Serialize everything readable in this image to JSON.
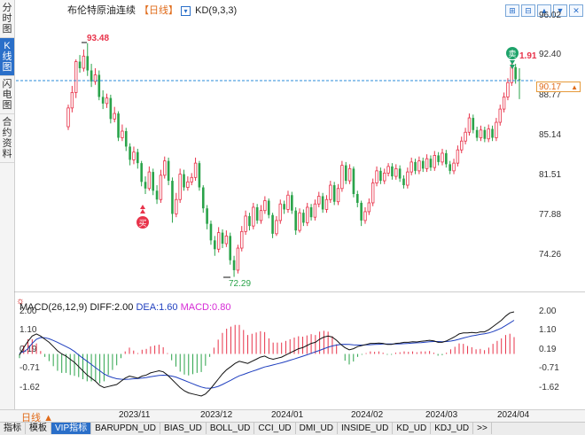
{
  "sidebar": {
    "items": [
      "分时图",
      "K线图",
      "闪电图",
      "合约资料"
    ],
    "active_index": 1
  },
  "header": {
    "title": "布伦特原油连续",
    "period": "【日线】",
    "indicator": "KD(9,3,3)"
  },
  "toolbar": {
    "buttons": [
      "⊞",
      "⊟",
      "▲",
      "▼",
      "✕"
    ]
  },
  "price_axis": {
    "labels": [
      "96.02",
      "92.40",
      "88.77",
      "85.14",
      "81.51",
      "77.88",
      "74.26"
    ]
  },
  "current_price": "90.17",
  "annotations": {
    "high": "93.48",
    "low": "72.29",
    "right_high": "1.91",
    "sell": "卖",
    "buy": "买"
  },
  "macd": {
    "name": "MACD(26,12,9)",
    "diff": "DIFF:2.00",
    "dea": "DEA:1.60",
    "macd_val": "MACD:0.80",
    "axis_labels": [
      "2.00",
      "1.10",
      "0.19",
      "-0.71",
      "-1.62"
    ]
  },
  "dates": [
    "2023/11",
    "2023/12",
    "2024/01",
    "2024/02",
    "2024/03",
    "2024/04"
  ],
  "period_selector": "日线",
  "tabs": [
    "指标",
    "模板",
    "VIP指标",
    "BARUPDN_UD",
    "BIAS_UD",
    "BOLL_UD",
    "CCI_UD",
    "DMI_UD",
    "INSIDE_UD",
    "KD_UD",
    "KDJ_UD",
    ">>"
  ],
  "active_tab": 2,
  "colors": {
    "up": "#e8334a",
    "down": "#2aa34a",
    "diff": "#111111",
    "dea": "#1f3fbf",
    "macd_label": "#d62ad6",
    "orange": "#e06b1a"
  },
  "chart_data": {
    "type": "candlestick",
    "title": "布伦特原油连续 日线",
    "y_range": [
      72.0,
      96.5
    ],
    "y_ticks": [
      96.02,
      92.4,
      88.77,
      85.14,
      81.51,
      77.88,
      74.26
    ],
    "candles": [
      [
        85.9,
        87.6,
        85.6,
        87.9
      ],
      [
        87.6,
        89.0,
        87.2,
        89.6
      ],
      [
        89.0,
        91.8,
        88.5,
        92.0
      ],
      [
        91.8,
        91.2,
        90.8,
        92.4
      ],
      [
        91.2,
        92.3,
        90.9,
        92.9
      ],
      [
        92.3,
        91.0,
        90.5,
        93.48
      ],
      [
        91.0,
        90.0,
        89.5,
        91.6
      ],
      [
        90.0,
        90.6,
        89.7,
        91.2
      ],
      [
        90.6,
        88.6,
        88.3,
        91.0
      ],
      [
        88.6,
        88.0,
        87.5,
        89.2
      ],
      [
        88.0,
        88.5,
        87.6,
        88.9
      ],
      [
        88.5,
        86.6,
        86.2,
        88.8
      ],
      [
        86.6,
        87.1,
        86.3,
        87.7
      ],
      [
        87.1,
        84.9,
        84.6,
        87.3
      ],
      [
        84.9,
        85.5,
        84.6,
        86.1
      ],
      [
        85.5,
        84.1,
        83.7,
        85.8
      ],
      [
        84.1,
        82.9,
        82.4,
        84.4
      ],
      [
        82.9,
        83.6,
        82.5,
        84.1
      ],
      [
        83.6,
        82.6,
        82.1,
        83.9
      ],
      [
        82.6,
        80.9,
        80.5,
        82.8
      ],
      [
        80.9,
        80.3,
        79.8,
        81.4
      ],
      [
        80.3,
        81.8,
        80.1,
        82.3
      ],
      [
        81.8,
        80.1,
        79.7,
        82.1
      ],
      [
        80.1,
        79.3,
        78.9,
        80.6
      ],
      [
        79.3,
        81.5,
        79.0,
        82.0
      ],
      [
        81.5,
        82.8,
        81.2,
        83.2
      ],
      [
        82.8,
        81.0,
        80.6,
        83.1
      ],
      [
        81.0,
        78.0,
        77.2,
        81.3
      ],
      [
        78.0,
        79.3,
        77.7,
        79.9
      ],
      [
        79.3,
        81.6,
        79.0,
        82.1
      ],
      [
        81.6,
        80.4,
        80.1,
        82.0
      ],
      [
        80.4,
        80.9,
        80.1,
        81.4
      ],
      [
        80.9,
        81.3,
        80.6,
        81.7
      ],
      [
        81.3,
        82.6,
        81.0,
        83.1
      ],
      [
        82.6,
        80.4,
        80.1,
        82.8
      ],
      [
        80.4,
        78.5,
        78.1,
        80.6
      ],
      [
        78.5,
        77.1,
        76.6,
        78.8
      ],
      [
        77.1,
        75.6,
        75.2,
        77.4
      ],
      [
        75.6,
        74.8,
        74.2,
        76.0
      ],
      [
        74.8,
        76.3,
        74.5,
        76.8
      ],
      [
        76.3,
        75.3,
        74.9,
        76.6
      ],
      [
        75.3,
        76.0,
        75.0,
        76.5
      ],
      [
        76.0,
        73.8,
        73.4,
        76.3
      ],
      [
        73.8,
        72.9,
        72.29,
        74.2
      ],
      [
        72.9,
        74.9,
        72.6,
        75.2
      ],
      [
        74.9,
        76.4,
        74.6,
        76.9
      ],
      [
        76.4,
        77.8,
        76.1,
        78.3
      ],
      [
        77.8,
        76.9,
        76.5,
        78.1
      ],
      [
        76.9,
        78.6,
        76.6,
        79.0
      ],
      [
        78.6,
        77.4,
        77.1,
        78.9
      ],
      [
        77.4,
        78.3,
        77.1,
        78.8
      ],
      [
        78.3,
        79.2,
        78.0,
        79.6
      ],
      [
        79.2,
        77.9,
        77.6,
        79.4
      ],
      [
        77.9,
        76.2,
        75.8,
        78.1
      ],
      [
        76.2,
        77.4,
        76.0,
        77.8
      ],
      [
        77.4,
        78.9,
        77.1,
        79.3
      ],
      [
        78.9,
        78.4,
        78.0,
        79.2
      ],
      [
        78.4,
        79.7,
        78.1,
        80.1
      ],
      [
        79.7,
        78.3,
        78.0,
        80.0
      ],
      [
        78.3,
        76.5,
        76.1,
        78.6
      ],
      [
        76.5,
        78.1,
        76.3,
        78.5
      ],
      [
        78.1,
        77.2,
        76.9,
        78.4
      ],
      [
        77.2,
        78.6,
        76.9,
        79.0
      ],
      [
        78.6,
        77.7,
        77.4,
        78.9
      ],
      [
        77.7,
        78.9,
        77.4,
        79.3
      ],
      [
        78.9,
        79.6,
        78.6,
        80.0
      ],
      [
        79.6,
        78.4,
        78.1,
        79.9
      ],
      [
        78.4,
        79.3,
        78.1,
        79.7
      ],
      [
        79.3,
        80.6,
        79.0,
        81.0
      ],
      [
        80.6,
        79.1,
        78.8,
        80.9
      ],
      [
        79.1,
        80.3,
        78.8,
        80.7
      ],
      [
        80.3,
        82.4,
        80.0,
        82.8
      ],
      [
        82.4,
        81.0,
        80.7,
        82.7
      ],
      [
        81.0,
        82.1,
        80.7,
        82.5
      ],
      [
        82.1,
        79.8,
        79.5,
        82.3
      ],
      [
        79.8,
        79.0,
        78.6,
        80.1
      ],
      [
        79.0,
        77.4,
        76.9,
        79.2
      ],
      [
        77.4,
        78.2,
        77.1,
        78.6
      ],
      [
        78.2,
        79.0,
        77.9,
        79.4
      ],
      [
        79.0,
        80.8,
        78.7,
        81.2
      ],
      [
        80.8,
        81.9,
        80.5,
        82.3
      ],
      [
        81.9,
        81.0,
        80.7,
        82.2
      ],
      [
        81.0,
        81.7,
        80.7,
        82.1
      ],
      [
        81.7,
        82.3,
        81.4,
        82.6
      ],
      [
        82.3,
        81.4,
        81.1,
        82.6
      ],
      [
        81.4,
        82.1,
        81.1,
        82.5
      ],
      [
        82.1,
        81.2,
        80.9,
        82.4
      ],
      [
        81.2,
        80.6,
        80.3,
        81.5
      ],
      [
        80.6,
        81.8,
        80.3,
        82.2
      ],
      [
        81.8,
        82.7,
        81.5,
        83.1
      ],
      [
        82.7,
        81.9,
        81.6,
        83.0
      ],
      [
        81.9,
        82.8,
        81.6,
        83.2
      ],
      [
        82.8,
        82.1,
        81.8,
        83.1
      ],
      [
        82.1,
        83.0,
        81.8,
        83.4
      ],
      [
        83.0,
        82.2,
        81.9,
        83.3
      ],
      [
        82.2,
        83.3,
        81.9,
        83.7
      ],
      [
        83.3,
        82.7,
        82.4,
        83.6
      ],
      [
        82.7,
        83.5,
        82.4,
        83.9
      ],
      [
        83.5,
        82.5,
        82.2,
        83.8
      ],
      [
        82.5,
        81.9,
        81.6,
        82.8
      ],
      [
        81.9,
        82.6,
        81.6,
        83.0
      ],
      [
        82.6,
        83.8,
        82.3,
        84.2
      ],
      [
        83.8,
        84.6,
        83.5,
        85.0
      ],
      [
        84.6,
        85.4,
        84.3,
        85.8
      ],
      [
        85.4,
        86.7,
        85.1,
        87.1
      ],
      [
        86.7,
        85.6,
        85.3,
        87.0
      ],
      [
        85.6,
        84.9,
        84.6,
        85.9
      ],
      [
        84.9,
        85.6,
        84.6,
        86.0
      ],
      [
        85.6,
        84.8,
        84.5,
        85.9
      ],
      [
        84.8,
        85.7,
        84.5,
        86.1
      ],
      [
        85.7,
        84.9,
        84.6,
        86.0
      ],
      [
        84.9,
        86.3,
        84.6,
        86.7
      ],
      [
        86.3,
        87.5,
        86.0,
        87.9
      ],
      [
        87.5,
        88.6,
        87.2,
        89.0
      ],
      [
        88.6,
        89.9,
        88.3,
        90.3
      ],
      [
        89.9,
        91.3,
        89.6,
        91.91
      ],
      [
        91.3,
        90.2,
        89.8,
        91.6
      ],
      [
        90.2,
        90.17,
        88.4,
        91.2
      ]
    ],
    "macd_range": [
      -2.1,
      2.4
    ],
    "macd_ticks": [
      2.0,
      1.1,
      0.19,
      -0.71,
      -1.62
    ],
    "diff": [
      -0.05,
      0.3,
      0.6,
      0.85,
      0.95,
      0.85,
      0.7,
      0.55,
      0.35,
      0.15,
      0.0,
      -0.1,
      -0.25,
      -0.4,
      -0.6,
      -0.8,
      -1.0,
      -1.15,
      -1.3,
      -1.5,
      -1.6,
      -1.55,
      -1.5,
      -1.45,
      -1.3,
      -1.15,
      -1.05,
      -1.1,
      -1.15,
      -1.05,
      -1.0,
      -0.9,
      -0.85,
      -0.8,
      -0.85,
      -1.0,
      -1.2,
      -1.4,
      -1.6,
      -1.75,
      -1.85,
      -1.9,
      -1.95,
      -2.0,
      -1.9,
      -1.7,
      -1.45,
      -1.2,
      -0.95,
      -0.75,
      -0.6,
      -0.45,
      -0.35,
      -0.4,
      -0.45,
      -0.35,
      -0.25,
      -0.15,
      -0.1,
      -0.2,
      -0.25,
      -0.2,
      -0.15,
      -0.05,
      0.05,
      0.15,
      0.25,
      0.3,
      0.4,
      0.5,
      0.55,
      0.7,
      0.8,
      0.85,
      0.8,
      0.65,
      0.45,
      0.3,
      0.2,
      0.25,
      0.35,
      0.4,
      0.45,
      0.5,
      0.5,
      0.52,
      0.5,
      0.45,
      0.45,
      0.5,
      0.52,
      0.55,
      0.55,
      0.58,
      0.57,
      0.6,
      0.62,
      0.65,
      0.62,
      0.55,
      0.55,
      0.62,
      0.72,
      0.82,
      0.95,
      1.0,
      1.0,
      1.02,
      1.0,
      1.05,
      1.05,
      1.15,
      1.3,
      1.45,
      1.6,
      1.8,
      1.95,
      2.0
    ],
    "dea": [
      0.05,
      0.1,
      0.25,
      0.5,
      0.7,
      0.78,
      0.77,
      0.72,
      0.64,
      0.55,
      0.45,
      0.35,
      0.25,
      0.12,
      -0.05,
      -0.2,
      -0.35,
      -0.5,
      -0.65,
      -0.8,
      -0.95,
      -1.05,
      -1.12,
      -1.18,
      -1.2,
      -1.21,
      -1.2,
      -1.18,
      -1.17,
      -1.15,
      -1.12,
      -1.08,
      -1.05,
      -1.02,
      -1.01,
      -1.02,
      -1.05,
      -1.1,
      -1.18,
      -1.26,
      -1.34,
      -1.42,
      -1.5,
      -1.57,
      -1.62,
      -1.63,
      -1.6,
      -1.54,
      -1.45,
      -1.35,
      -1.25,
      -1.14,
      -1.04,
      -0.97,
      -0.9,
      -0.83,
      -0.76,
      -0.69,
      -0.62,
      -0.57,
      -0.52,
      -0.47,
      -0.42,
      -0.36,
      -0.3,
      -0.24,
      -0.17,
      -0.11,
      -0.04,
      0.03,
      0.1,
      0.17,
      0.25,
      0.32,
      0.38,
      0.42,
      0.45,
      0.46,
      0.45,
      0.43,
      0.42,
      0.42,
      0.43,
      0.44,
      0.45,
      0.46,
      0.47,
      0.47,
      0.47,
      0.47,
      0.48,
      0.49,
      0.5,
      0.52,
      0.53,
      0.54,
      0.56,
      0.58,
      0.59,
      0.59,
      0.58,
      0.59,
      0.61,
      0.65,
      0.7,
      0.76,
      0.81,
      0.86,
      0.89,
      0.93,
      0.96,
      1.0,
      1.06,
      1.14,
      1.23,
      1.35,
      1.47,
      1.6
    ]
  }
}
